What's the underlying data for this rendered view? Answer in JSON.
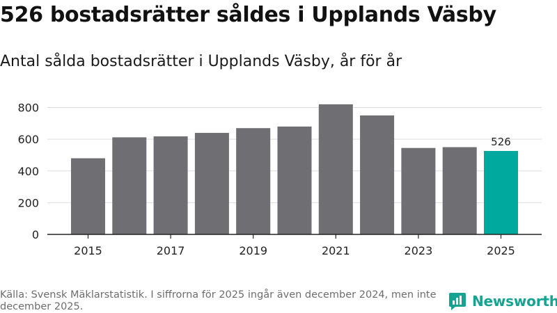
{
  "title": "526 bostadsrätter såldes i Upplands Väsby",
  "subtitle": "Antal sålda bostadsrätter i Upplands Väsby, år för år",
  "source": "Källa: Svensk Mäklarstatistik. I siffrorna för 2025 ingår även december 2024, men inte december 2025.",
  "brand": {
    "name": "Newsworthy",
    "icon": "newsworthy-logo-icon"
  },
  "colors": {
    "bar": "#6e6e73",
    "highlight": "#00a99d",
    "grid": "#dddddd",
    "axis": "#222222",
    "brand": "#17a392"
  },
  "chart_data": {
    "type": "bar",
    "title": "Antal sålda bostadsrätter i Upplands Väsby, år för år",
    "xlabel": "",
    "ylabel": "",
    "categories": [
      "2015",
      "2016",
      "2017",
      "2018",
      "2019",
      "2020",
      "2021",
      "2022",
      "2023",
      "2024",
      "2025"
    ],
    "values": [
      480,
      612,
      618,
      640,
      670,
      680,
      820,
      750,
      545,
      550,
      526
    ],
    "x_tick_labels": [
      "2015",
      "2017",
      "2019",
      "2021",
      "2023",
      "2025"
    ],
    "y_ticks": [
      0,
      200,
      400,
      600,
      800
    ],
    "ylim": [
      0,
      820
    ],
    "highlight_category": "2025",
    "data_labels": [
      {
        "category": "2025",
        "text": "526"
      }
    ],
    "grid": true,
    "legend": "none"
  }
}
